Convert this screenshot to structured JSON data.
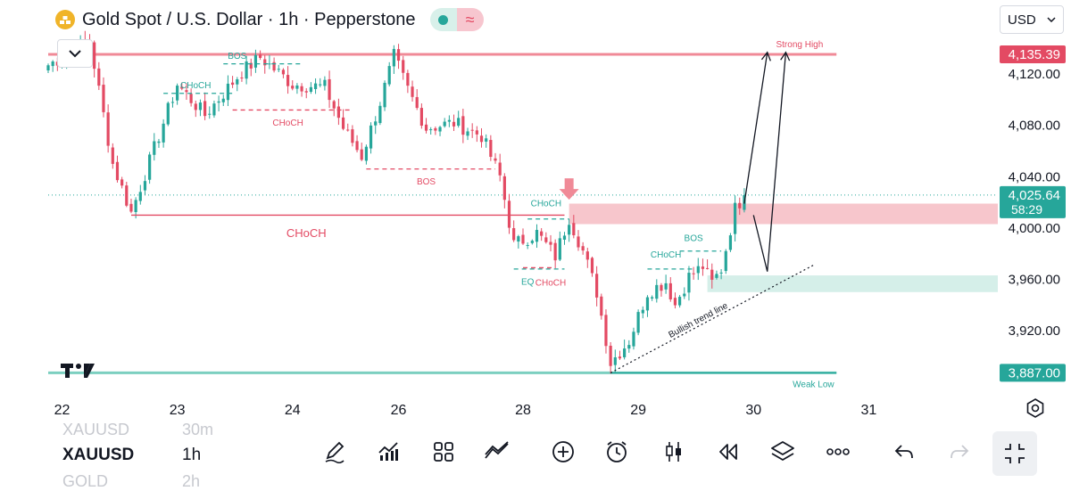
{
  "header": {
    "title": "Gold Spot / U.S. Dollar · 1h · Pepperstone",
    "currency": "USD",
    "colors": {
      "bull": "#26a69a",
      "bear": "#e34a63",
      "logo": "#f0b429"
    }
  },
  "chart_data": {
    "type": "candlestick",
    "symbol": "XAUUSD",
    "interval": "1h",
    "ylim": [
      3872,
      4150
    ],
    "xlim": [
      0,
      206
    ],
    "y_ticks": [
      "4,120.00",
      "4,080.00",
      "4,040.00",
      "4,000.00",
      "3,960.00",
      "3,920.00"
    ],
    "x_ticks": [
      {
        "label": "22",
        "x": 3
      },
      {
        "label": "23",
        "x": 28
      },
      {
        "label": "24",
        "x": 53
      },
      {
        "label": "26",
        "x": 76
      },
      {
        "label": "28",
        "x": 103
      },
      {
        "label": "29",
        "x": 128
      },
      {
        "label": "30",
        "x": 153
      },
      {
        "label": "31",
        "x": 178
      }
    ],
    "price_tags": [
      {
        "label": "4,135.39",
        "value": 4135.39,
        "color": "#e34a63"
      },
      {
        "label": "4,025.64",
        "sub": "58:29",
        "value": 4025.64,
        "color": "#26a69a"
      },
      {
        "label": "3,887.00",
        "value": 3887,
        "color": "#26a69a"
      }
    ],
    "anchors": [
      {
        "x": 0,
        "price": 4127
      },
      {
        "x": 9,
        "price": 4146
      },
      {
        "x": 14,
        "price": 4050
      },
      {
        "x": 18,
        "price": 4012
      },
      {
        "x": 28,
        "price": 4112
      },
      {
        "x": 34,
        "price": 4088
      },
      {
        "x": 42,
        "price": 4122
      },
      {
        "x": 46,
        "price": 4133
      },
      {
        "x": 53,
        "price": 4112
      },
      {
        "x": 60,
        "price": 4110
      },
      {
        "x": 64,
        "price": 4078
      },
      {
        "x": 68,
        "price": 4056
      },
      {
        "x": 72,
        "price": 4098
      },
      {
        "x": 75,
        "price": 4134
      },
      {
        "x": 78,
        "price": 4108
      },
      {
        "x": 82,
        "price": 4078
      },
      {
        "x": 88,
        "price": 4082
      },
      {
        "x": 94,
        "price": 4072
      },
      {
        "x": 98,
        "price": 4040
      },
      {
        "x": 101,
        "price": 3987
      },
      {
        "x": 106,
        "price": 3996
      },
      {
        "x": 110,
        "price": 3978
      },
      {
        "x": 113,
        "price": 4008
      },
      {
        "x": 116,
        "price": 3982
      },
      {
        "x": 119,
        "price": 3950
      },
      {
        "x": 122,
        "price": 3895
      },
      {
        "x": 126,
        "price": 3912
      },
      {
        "x": 130,
        "price": 3950
      },
      {
        "x": 134,
        "price": 3958
      },
      {
        "x": 136,
        "price": 3940
      },
      {
        "x": 139,
        "price": 3962
      },
      {
        "x": 142,
        "price": 3970
      },
      {
        "x": 144,
        "price": 3957
      },
      {
        "x": 146,
        "price": 3968
      },
      {
        "x": 149,
        "price": 4015
      },
      {
        "x": 151,
        "price": 4025.64
      }
    ],
    "zones": [
      {
        "name": "supply-zone",
        "x1": 113,
        "x2": 206,
        "y1": 4003,
        "y2": 4019,
        "color": "#f7c6cc"
      },
      {
        "name": "demand-zone",
        "x1": 143,
        "x2": 206,
        "y1": 3950,
        "y2": 3963,
        "color": "#d5efe9"
      }
    ],
    "levels": [
      {
        "name": "strong-high-line",
        "x1": 0,
        "x2": 171,
        "y": 4135.39,
        "color": "#f08a97",
        "width": 3
      },
      {
        "name": "weak-low-line",
        "x1": 0,
        "x2": 171,
        "y": 3887,
        "color": "#7ccfc0",
        "width": 3
      },
      {
        "name": "weak-low-green-line",
        "x1": 122,
        "x2": 171,
        "y": 3887,
        "color": "#26a69a",
        "width": 1.5
      },
      {
        "name": "last-price-line",
        "x1": 0,
        "x2": 206,
        "y": 4025.64,
        "color": "#26a69a",
        "width": 1,
        "dash": "1,3"
      }
    ],
    "structure": [
      {
        "name": "choch-line-1",
        "label": "CHoCH",
        "x1": 25,
        "x2": 40,
        "y": 4105,
        "color": "#26a69a",
        "dash": true,
        "label_x": 32,
        "label_y": 4111
      },
      {
        "name": "bos-line-1",
        "label": "BOS",
        "x1": 38,
        "x2": 55,
        "y": 4128,
        "color": "#26a69a",
        "dash": true,
        "label_x": 41,
        "label_y": 4134
      },
      {
        "name": "choch-line-2",
        "label": "CHoCH",
        "x1": 40,
        "x2": 66,
        "y": 4092,
        "color": "#e34a63",
        "dash": true,
        "label_x": 52,
        "label_y": 4082
      },
      {
        "name": "bos-line-2",
        "label": "BOS",
        "x1": 69,
        "x2": 97,
        "y": 4046,
        "color": "#e34a63",
        "dash": true,
        "label_x": 82,
        "label_y": 4036
      },
      {
        "name": "choch-line-3",
        "label": "CHoCH",
        "x1": 18,
        "x2": 112,
        "y": 4010,
        "color": "#e34a63",
        "dash": false,
        "label_x": 56,
        "label_y": 3995
      },
      {
        "name": "choch-line-4",
        "label": "CHoCH",
        "x1": 104,
        "x2": 113,
        "y": 4007,
        "color": "#26a69a",
        "dash": true,
        "label_x": 108,
        "label_y": 4019
      },
      {
        "name": "eq-line",
        "label": "EQ",
        "x1": 101,
        "x2": 112,
        "y": 3968,
        "color": "#26a69a",
        "dash": true,
        "label_x": 104,
        "label_y": 3958
      },
      {
        "name": "choch-line-5",
        "label": "CHoCH",
        "x1": 103,
        "x2": 110,
        "y": 3969,
        "color": "#e34a63",
        "dash": true,
        "label_x": 109,
        "label_y": 3957
      },
      {
        "name": "choch-line-6",
        "label": "CHoCH",
        "x1": 130,
        "x2": 140,
        "y": 3968,
        "color": "#26a69a",
        "dash": true,
        "label_x": 134,
        "label_y": 3979
      },
      {
        "name": "bos-line-3",
        "label": "BOS",
        "x1": 137,
        "x2": 146,
        "y": 3982,
        "color": "#26a69a",
        "dash": true,
        "label_x": 140,
        "label_y": 3992
      }
    ],
    "annotations": [
      {
        "name": "strong-high-label",
        "label": "Strong High",
        "x": 163,
        "y": 4143,
        "color": "#e34a63"
      },
      {
        "name": "weak-low-label",
        "label": "Weak Low",
        "x": 166,
        "y": 3878,
        "color": "#26a69a"
      },
      {
        "name": "bullish-trend-line-label",
        "label": "Bullish trend line",
        "x": 141,
        "y": 3928,
        "color": "#131722"
      }
    ],
    "trend_line": {
      "x1": 122,
      "y1": 3887,
      "x2": 166,
      "y2": 3971
    },
    "projection_paths": [
      [
        {
          "x": 151,
          "y": 4019
        },
        {
          "x": 156,
          "y": 4137
        }
      ],
      [
        {
          "x": 153,
          "y": 4010
        },
        {
          "x": 156,
          "y": 3966
        },
        {
          "x": 160,
          "y": 4137
        }
      ]
    ],
    "marker_arrow": {
      "x": 113,
      "y": 4022
    }
  },
  "bottom_bar": {
    "symbol": "XAUUSD",
    "symbol_prev": "XAUUSD",
    "symbol_next": "GOLD",
    "interval": "1h",
    "interval_prev": "30m",
    "interval_next": "2h",
    "tools": [
      "pen-icon",
      "indicators-icon",
      "templates-icon",
      "compare-icon",
      "add-icon",
      "alert-icon",
      "candles-icon",
      "replay-icon",
      "layers-icon",
      "more-icon",
      "undo-icon",
      "redo-icon",
      "fullscreen-icon"
    ]
  }
}
